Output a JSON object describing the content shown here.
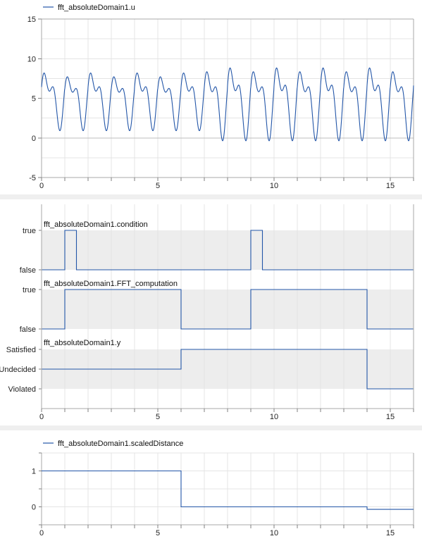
{
  "chart_data": [
    {
      "type": "line",
      "legend": "fft_absoluteDomain1.u",
      "x_range": [
        0,
        16
      ],
      "x_ticks": [
        "0",
        "5",
        "10",
        "15"
      ],
      "y_range": [
        -5,
        15
      ],
      "y_ticks": [
        "-5",
        "0",
        "5",
        "10",
        "15"
      ],
      "grid": true,
      "legend_position": "top-left",
      "series_note": "oscillating signal, period about 1 s",
      "phase1": {
        "x_end": 7.0,
        "period": 1.0,
        "max": 9.3,
        "min": 0.8,
        "inner_peak": 7.5
      },
      "phase2": {
        "x_end": 16.0,
        "period": 1.0,
        "max": 10.3,
        "min": -0.5,
        "inner_peak": 8.5
      }
    },
    {
      "type": "line",
      "subplots": [
        {
          "name": "fft_absoluteDomain1.condition",
          "levels": [
            "false",
            "true"
          ],
          "steps": [
            [
              0,
              "false"
            ],
            [
              1.0,
              "true"
            ],
            [
              1.5,
              "false"
            ],
            [
              9.0,
              "true"
            ],
            [
              9.5,
              "false"
            ],
            [
              16,
              "false"
            ]
          ]
        },
        {
          "name": "fft_absoluteDomain1.FFT_computation",
          "levels": [
            "false",
            "true"
          ],
          "steps": [
            [
              0,
              "false"
            ],
            [
              1.0,
              "true"
            ],
            [
              6.0,
              "false"
            ],
            [
              9.0,
              "true"
            ],
            [
              14.0,
              "false"
            ],
            [
              16,
              "false"
            ]
          ]
        },
        {
          "name": "fft_absoluteDomain1.y",
          "levels": [
            "Violated",
            "Undecided",
            "Satisfied"
          ],
          "steps": [
            [
              0,
              "Undecided"
            ],
            [
              6.0,
              "Satisfied"
            ],
            [
              14.0,
              "Violated"
            ],
            [
              16,
              "Violated"
            ]
          ]
        }
      ],
      "x_range": [
        0,
        16
      ],
      "x_ticks": [
        "0",
        "5",
        "10",
        "15"
      ],
      "grid": true
    },
    {
      "type": "line",
      "legend": "fft_absoluteDomain1.scaledDistance",
      "x_range": [
        0,
        16
      ],
      "x_ticks": [
        "0",
        "5",
        "10",
        "15"
      ],
      "y_range": [
        -0.5,
        1.5
      ],
      "y_ticks": [
        "0",
        "1"
      ],
      "grid": true,
      "legend_position": "top-left",
      "steps": [
        [
          0,
          1.0
        ],
        [
          6.0,
          1.0
        ],
        [
          6.0,
          0.0
        ],
        [
          14.0,
          0.0
        ],
        [
          14.0,
          -0.07
        ],
        [
          16,
          -0.07
        ]
      ]
    }
  ]
}
